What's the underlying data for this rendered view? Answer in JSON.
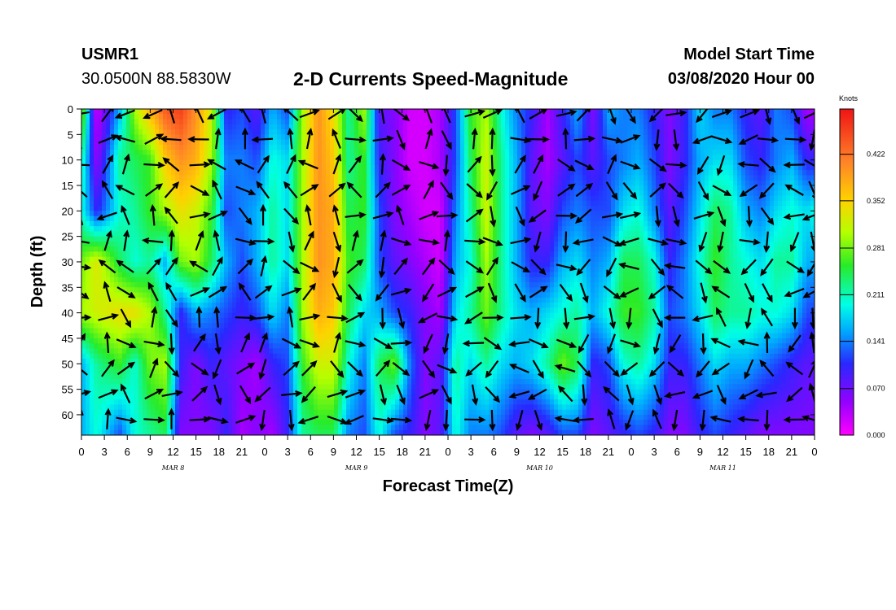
{
  "header": {
    "station": "USMR1",
    "coords": "30.0500N 88.5830W",
    "title": "2-D Currents Speed-Magnitude",
    "start_label": "Model Start Time",
    "start_value": "03/08/2020 Hour 00"
  },
  "chart_data": {
    "type": "heatmap",
    "title": "2-D Currents Speed-Magnitude",
    "xlabel": "Forecast Time(Z)",
    "ylabel": "Depth (ft)",
    "x_hours_range": [
      0,
      96
    ],
    "y_range": [
      0,
      64
    ],
    "x_tick_labels": [
      "0",
      "3",
      "6",
      "9",
      "12",
      "15",
      "18",
      "21",
      "0",
      "3",
      "6",
      "9",
      "12",
      "15",
      "18",
      "21",
      "0",
      "3",
      "6",
      "9",
      "12",
      "15",
      "18",
      "21",
      "0",
      "3",
      "6",
      "9",
      "12",
      "15",
      "18",
      "21",
      "0"
    ],
    "y_ticks": [
      0,
      5,
      10,
      15,
      20,
      25,
      30,
      35,
      40,
      45,
      50,
      55,
      60
    ],
    "day_labels": [
      {
        "text": "MAR 8",
        "hour": 12
      },
      {
        "text": "MAR 9",
        "hour": 36
      },
      {
        "text": "MAR 10",
        "hour": 60
      },
      {
        "text": "MAR 11",
        "hour": 84
      }
    ],
    "colorbar": {
      "unit": "Knots",
      "range": [
        0,
        0.49
      ],
      "ticks": [
        0.0,
        0.07,
        0.141,
        0.211,
        0.281,
        0.352,
        0.422
      ],
      "tick_labels": [
        "0.000",
        "0.070",
        "0.141",
        "0.211",
        "0.281",
        "0.352",
        "0.422"
      ]
    },
    "speed_profiles": [
      {
        "hour": 0,
        "depths": [
          0,
          10,
          20,
          30,
          40,
          50,
          64
        ],
        "values": [
          0.3,
          0.22,
          0.2,
          0.28,
          0.3,
          0.16,
          0.16
        ]
      },
      {
        "hour": 2,
        "depths": [
          0,
          10,
          20,
          30,
          40,
          50,
          64
        ],
        "values": [
          0.02,
          0.05,
          0.1,
          0.33,
          0.32,
          0.22,
          0.2
        ]
      },
      {
        "hour": 5,
        "depths": [
          0,
          10,
          20,
          30,
          40,
          50,
          64
        ],
        "values": [
          0.16,
          0.22,
          0.2,
          0.24,
          0.34,
          0.26,
          0.12
        ]
      },
      {
        "hour": 7,
        "depths": [
          0,
          10,
          20,
          30,
          40,
          50,
          64
        ],
        "values": [
          0.3,
          0.24,
          0.22,
          0.2,
          0.34,
          0.2,
          0.2
        ]
      },
      {
        "hour": 9,
        "depths": [
          0,
          10,
          20,
          30,
          40,
          50,
          64
        ],
        "values": [
          0.38,
          0.26,
          0.26,
          0.22,
          0.3,
          0.28,
          0.22
        ]
      },
      {
        "hour": 11,
        "depths": [
          0,
          10,
          20,
          30,
          40,
          50,
          64
        ],
        "values": [
          0.44,
          0.36,
          0.3,
          0.16,
          0.22,
          0.3,
          0.24
        ]
      },
      {
        "hour": 13,
        "depths": [
          0,
          10,
          20,
          30,
          40,
          50,
          64
        ],
        "values": [
          0.46,
          0.4,
          0.34,
          0.28,
          0.1,
          0.1,
          0.06
        ]
      },
      {
        "hour": 15,
        "depths": [
          0,
          10,
          20,
          30,
          40,
          50,
          64
        ],
        "values": [
          0.4,
          0.38,
          0.32,
          0.3,
          0.16,
          0.06,
          0.06
        ]
      },
      {
        "hour": 17,
        "depths": [
          0,
          10,
          20,
          30,
          40,
          50,
          64
        ],
        "values": [
          0.32,
          0.3,
          0.26,
          0.24,
          0.14,
          0.1,
          0.06
        ]
      },
      {
        "hour": 19,
        "depths": [
          0,
          10,
          20,
          30,
          40,
          50,
          64
        ],
        "values": [
          0.1,
          0.14,
          0.12,
          0.16,
          0.12,
          0.08,
          0.1
        ]
      },
      {
        "hour": 21,
        "depths": [
          0,
          10,
          20,
          30,
          40,
          50,
          64
        ],
        "values": [
          0.12,
          0.14,
          0.14,
          0.12,
          0.1,
          0.06,
          0.04
        ]
      },
      {
        "hour": 23,
        "depths": [
          0,
          10,
          20,
          30,
          40,
          50,
          64
        ],
        "values": [
          0.08,
          0.12,
          0.16,
          0.16,
          0.12,
          0.04,
          0.06
        ]
      },
      {
        "hour": 25,
        "depths": [
          0,
          10,
          20,
          30,
          40,
          50,
          64
        ],
        "values": [
          0.16,
          0.2,
          0.22,
          0.22,
          0.18,
          0.1,
          0.04
        ]
      },
      {
        "hour": 27,
        "depths": [
          0,
          10,
          20,
          30,
          40,
          50,
          64
        ],
        "values": [
          0.12,
          0.18,
          0.18,
          0.18,
          0.14,
          0.12,
          0.1
        ]
      },
      {
        "hour": 29,
        "depths": [
          0,
          10,
          20,
          30,
          40,
          50,
          64
        ],
        "values": [
          0.3,
          0.3,
          0.3,
          0.3,
          0.3,
          0.26,
          0.22
        ]
      },
      {
        "hour": 31,
        "depths": [
          0,
          10,
          20,
          30,
          40,
          50,
          64
        ],
        "values": [
          0.4,
          0.4,
          0.4,
          0.4,
          0.38,
          0.32,
          0.24
        ]
      },
      {
        "hour": 33,
        "depths": [
          0,
          10,
          20,
          30,
          40,
          50,
          64
        ],
        "values": [
          0.34,
          0.36,
          0.38,
          0.38,
          0.36,
          0.32,
          0.24
        ]
      },
      {
        "hour": 35,
        "depths": [
          0,
          10,
          20,
          30,
          40,
          50,
          64
        ],
        "values": [
          0.22,
          0.22,
          0.24,
          0.26,
          0.24,
          0.2,
          0.14
        ]
      },
      {
        "hour": 37,
        "depths": [
          0,
          10,
          20,
          30,
          40,
          50,
          64
        ],
        "values": [
          0.3,
          0.26,
          0.26,
          0.24,
          0.18,
          0.14,
          0.12
        ]
      },
      {
        "hour": 39,
        "depths": [
          0,
          10,
          20,
          30,
          40,
          50,
          64
        ],
        "values": [
          0.08,
          0.1,
          0.12,
          0.12,
          0.16,
          0.24,
          0.2
        ]
      },
      {
        "hour": 41,
        "depths": [
          0,
          10,
          20,
          30,
          40,
          50,
          64
        ],
        "values": [
          0.06,
          0.06,
          0.06,
          0.08,
          0.12,
          0.28,
          0.12
        ]
      },
      {
        "hour": 43,
        "depths": [
          0,
          10,
          20,
          30,
          40,
          50,
          64
        ],
        "values": [
          0.02,
          0.02,
          0.04,
          0.06,
          0.1,
          0.14,
          0.1
        ]
      },
      {
        "hour": 45,
        "depths": [
          0,
          10,
          20,
          30,
          40,
          50,
          64
        ],
        "values": [
          0.02,
          0.02,
          0.02,
          0.04,
          0.06,
          0.06,
          0.06
        ]
      },
      {
        "hour": 47,
        "depths": [
          0,
          10,
          20,
          30,
          40,
          50,
          64
        ],
        "values": [
          0.04,
          0.04,
          0.02,
          0.02,
          0.04,
          0.08,
          0.08
        ]
      },
      {
        "hour": 49,
        "depths": [
          0,
          10,
          20,
          30,
          40,
          50,
          64
        ],
        "values": [
          0.12,
          0.12,
          0.14,
          0.16,
          0.18,
          0.22,
          0.2
        ]
      },
      {
        "hour": 51,
        "depths": [
          0,
          10,
          20,
          30,
          40,
          50,
          64
        ],
        "values": [
          0.26,
          0.24,
          0.22,
          0.2,
          0.22,
          0.18,
          0.14
        ]
      },
      {
        "hour": 53,
        "depths": [
          0,
          10,
          20,
          30,
          40,
          50,
          64
        ],
        "values": [
          0.3,
          0.32,
          0.32,
          0.3,
          0.28,
          0.22,
          0.14
        ]
      },
      {
        "hour": 55,
        "depths": [
          0,
          10,
          20,
          30,
          40,
          50,
          64
        ],
        "values": [
          0.2,
          0.22,
          0.22,
          0.22,
          0.22,
          0.18,
          0.12
        ]
      },
      {
        "hour": 57,
        "depths": [
          0,
          10,
          20,
          30,
          40,
          50,
          64
        ],
        "values": [
          0.14,
          0.16,
          0.16,
          0.16,
          0.18,
          0.16,
          0.08
        ]
      },
      {
        "hour": 59,
        "depths": [
          0,
          10,
          20,
          30,
          40,
          50,
          64
        ],
        "values": [
          0.1,
          0.08,
          0.08,
          0.1,
          0.16,
          0.18,
          0.06
        ]
      },
      {
        "hour": 61,
        "depths": [
          0,
          10,
          20,
          30,
          40,
          50,
          64
        ],
        "values": [
          0.04,
          0.04,
          0.06,
          0.1,
          0.18,
          0.22,
          0.08
        ]
      },
      {
        "hour": 63,
        "depths": [
          0,
          10,
          20,
          30,
          40,
          50,
          64
        ],
        "values": [
          0.1,
          0.08,
          0.12,
          0.16,
          0.2,
          0.28,
          0.12
        ]
      },
      {
        "hour": 65,
        "depths": [
          0,
          10,
          20,
          30,
          40,
          50,
          64
        ],
        "values": [
          0.16,
          0.12,
          0.14,
          0.18,
          0.22,
          0.24,
          0.12
        ]
      },
      {
        "hour": 67,
        "depths": [
          0,
          10,
          20,
          30,
          40,
          50,
          64
        ],
        "values": [
          0.06,
          0.08,
          0.12,
          0.14,
          0.16,
          0.1,
          0.06
        ]
      },
      {
        "hour": 69,
        "depths": [
          0,
          10,
          20,
          30,
          40,
          50,
          64
        ],
        "values": [
          0.16,
          0.12,
          0.12,
          0.16,
          0.2,
          0.12,
          0.08
        ]
      },
      {
        "hour": 71,
        "depths": [
          0,
          10,
          20,
          30,
          40,
          50,
          64
        ],
        "values": [
          0.14,
          0.14,
          0.18,
          0.24,
          0.26,
          0.2,
          0.1
        ]
      },
      {
        "hour": 73,
        "depths": [
          0,
          10,
          20,
          30,
          40,
          50,
          64
        ],
        "values": [
          0.14,
          0.16,
          0.2,
          0.24,
          0.26,
          0.22,
          0.12
        ]
      },
      {
        "hour": 75,
        "depths": [
          0,
          10,
          20,
          30,
          40,
          50,
          64
        ],
        "values": [
          0.1,
          0.12,
          0.14,
          0.2,
          0.22,
          0.18,
          0.1
        ]
      },
      {
        "hour": 77,
        "depths": [
          0,
          10,
          20,
          30,
          40,
          50,
          64
        ],
        "values": [
          0.06,
          0.06,
          0.08,
          0.1,
          0.12,
          0.1,
          0.06
        ]
      },
      {
        "hour": 79,
        "depths": [
          0,
          10,
          20,
          30,
          40,
          50,
          64
        ],
        "values": [
          0.1,
          0.1,
          0.12,
          0.14,
          0.14,
          0.1,
          0.06
        ]
      },
      {
        "hour": 81,
        "depths": [
          0,
          10,
          20,
          30,
          40,
          50,
          64
        ],
        "values": [
          0.18,
          0.16,
          0.18,
          0.2,
          0.18,
          0.14,
          0.1
        ]
      },
      {
        "hour": 83,
        "depths": [
          0,
          10,
          20,
          30,
          40,
          50,
          64
        ],
        "values": [
          0.14,
          0.18,
          0.24,
          0.26,
          0.24,
          0.18,
          0.12
        ]
      },
      {
        "hour": 85,
        "depths": [
          0,
          10,
          20,
          30,
          40,
          50,
          64
        ],
        "values": [
          0.14,
          0.18,
          0.22,
          0.22,
          0.22,
          0.16,
          0.1
        ]
      },
      {
        "hour": 87,
        "depths": [
          0,
          10,
          20,
          30,
          40,
          50,
          64
        ],
        "values": [
          0.1,
          0.12,
          0.16,
          0.2,
          0.22,
          0.16,
          0.08
        ]
      },
      {
        "hour": 89,
        "depths": [
          0,
          10,
          20,
          30,
          40,
          50,
          64
        ],
        "values": [
          0.08,
          0.1,
          0.14,
          0.18,
          0.2,
          0.14,
          0.06
        ]
      },
      {
        "hour": 91,
        "depths": [
          0,
          10,
          20,
          30,
          40,
          50,
          64
        ],
        "values": [
          0.14,
          0.14,
          0.18,
          0.22,
          0.2,
          0.12,
          0.06
        ]
      },
      {
        "hour": 93,
        "depths": [
          0,
          10,
          20,
          30,
          40,
          50,
          64
        ],
        "values": [
          0.12,
          0.16,
          0.2,
          0.22,
          0.18,
          0.1,
          0.06
        ]
      },
      {
        "hour": 95,
        "depths": [
          0,
          10,
          20,
          30,
          40,
          50,
          64
        ],
        "values": [
          0.04,
          0.1,
          0.18,
          0.16,
          0.12,
          0.08,
          0.06
        ]
      },
      {
        "hour": 96,
        "depths": [
          0,
          10,
          20,
          30,
          40,
          50,
          64
        ],
        "values": [
          0.04,
          0.1,
          0.2,
          0.16,
          0.12,
          0.08,
          0.06
        ]
      }
    ],
    "vector_hours": [
      0,
      3,
      6,
      9,
      12,
      15,
      18,
      21,
      24,
      27,
      30,
      33,
      36,
      39,
      42,
      45,
      48,
      51,
      54,
      57,
      60,
      63,
      66,
      69,
      72,
      75,
      78,
      81,
      84,
      87,
      90,
      93,
      96
    ],
    "vector_depths": [
      0,
      5,
      10,
      15,
      20,
      25,
      30,
      35,
      40,
      45,
      50,
      55,
      60
    ],
    "vector_pattern_deg": [
      170,
      200,
      135,
      250,
      110,
      300,
      160,
      225,
      320,
      190,
      145,
      270,
      210
    ]
  }
}
